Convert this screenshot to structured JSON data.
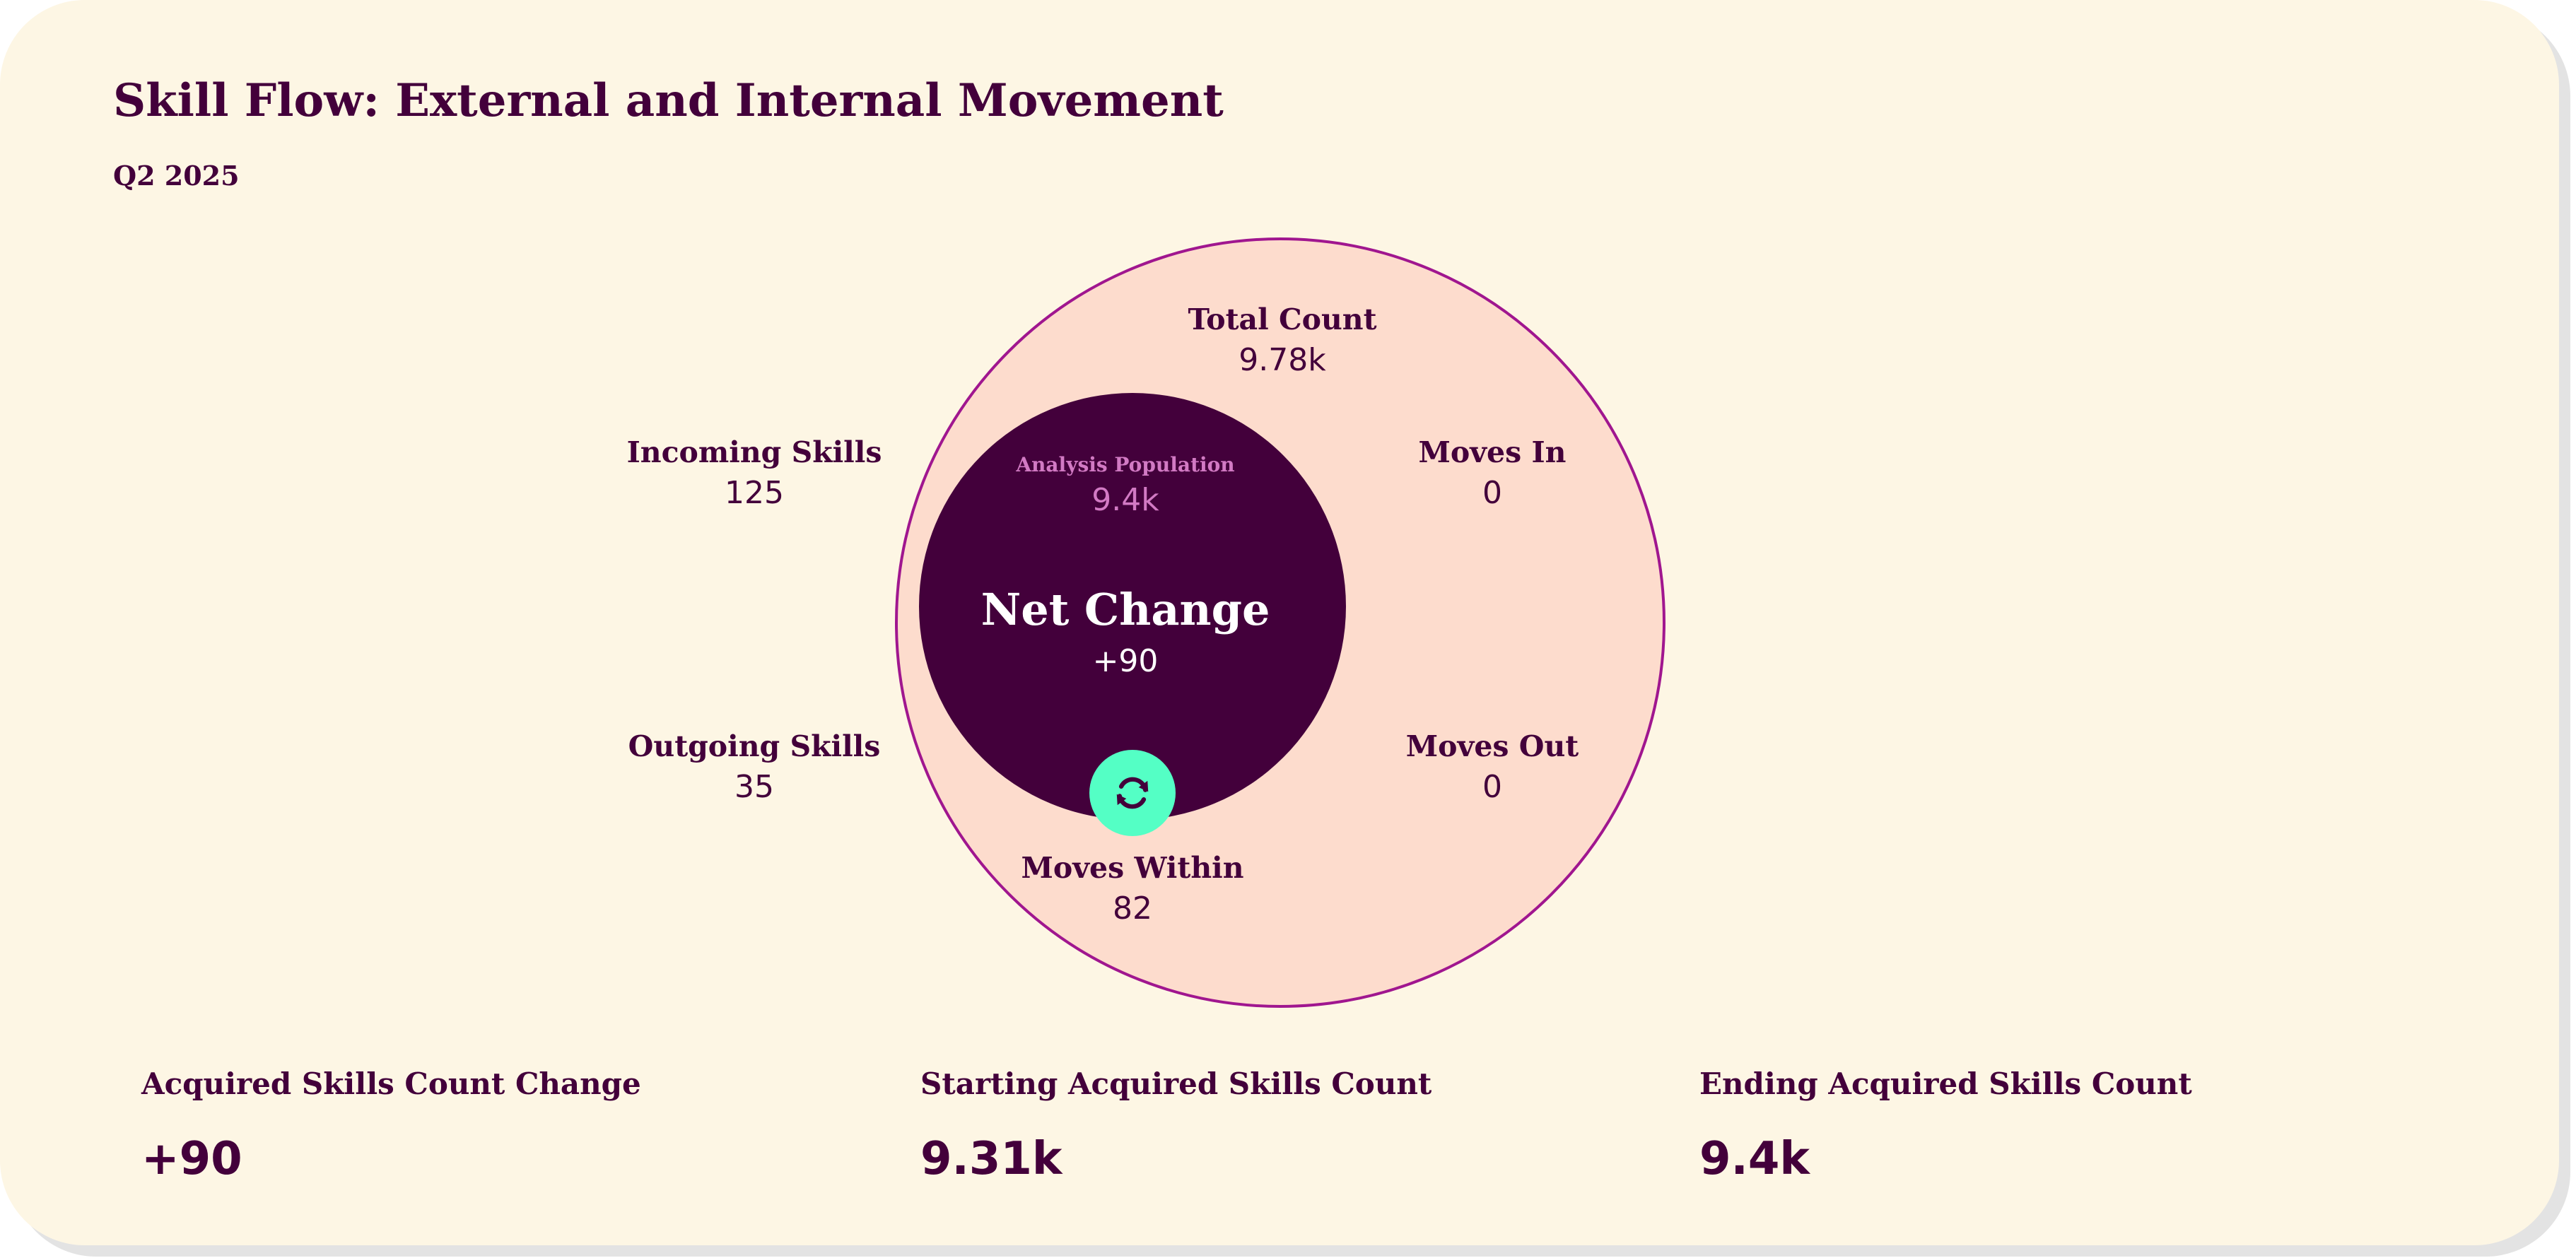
{
  "title": "Skill Flow: External and Internal Movement",
  "subtitle": "Q2 2025",
  "diagram": {
    "total_count": {
      "label": "Total Count",
      "value": "9.78k"
    },
    "incoming_skills": {
      "label": "Incoming Skills",
      "value": "125"
    },
    "outgoing_skills": {
      "label": "Outgoing Skills",
      "value": "35"
    },
    "moves_in": {
      "label": "Moves In",
      "value": "0"
    },
    "moves_out": {
      "label": "Moves Out",
      "value": "0"
    },
    "moves_within": {
      "label": "Moves Within",
      "value": "82"
    },
    "analysis_population": {
      "label": "Analysis Population",
      "value": "9.4k"
    },
    "net_change": {
      "label": "Net Change",
      "value": "+90"
    },
    "sync_icon": "sync-icon"
  },
  "summary": [
    {
      "label": "Acquired Skills Count Change",
      "value": "+90"
    },
    {
      "label": "Starting Acquired Skills Count",
      "value": "9.31k"
    },
    {
      "label": "Ending Acquired Skills Count",
      "value": "9.4k"
    }
  ],
  "colors": {
    "background": "#fdf6e4",
    "primary": "#43003b",
    "outer_fill": "#fddccd",
    "outer_stroke": "#a0168f",
    "population_text": "#d27ac4",
    "accent": "#54ffc5"
  }
}
